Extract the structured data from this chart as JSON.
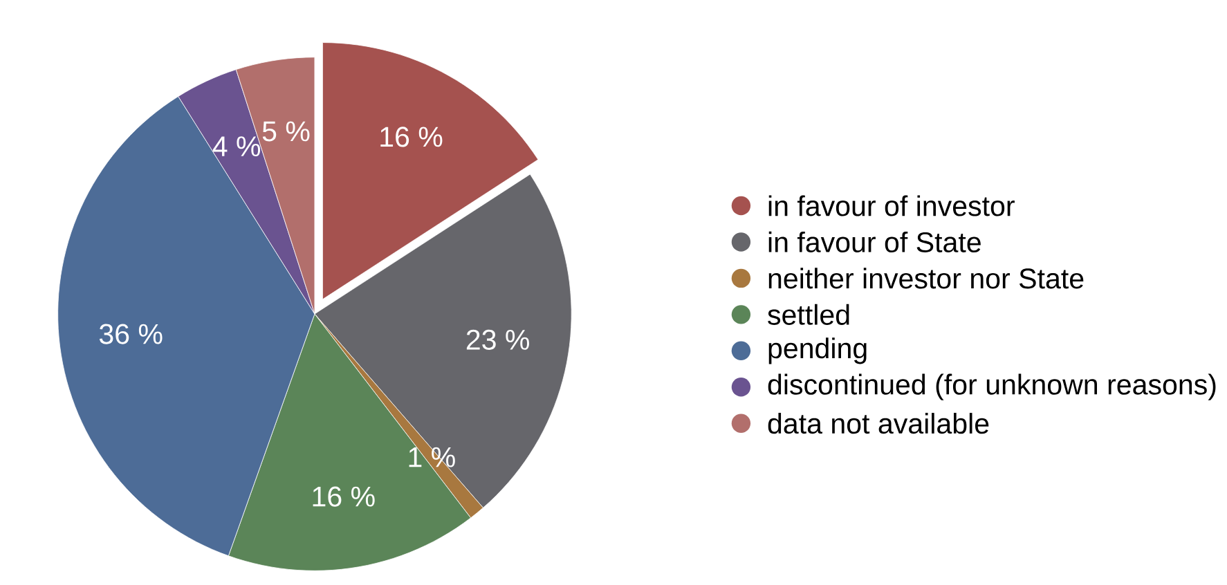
{
  "chart_data": {
    "type": "pie",
    "categories": [
      "in favour of investor",
      "in favour of State",
      "neither investor nor State",
      "settled",
      "pending",
      "discontinued (for unknown reasons)",
      "data not available"
    ],
    "values": [
      16,
      23,
      1,
      16,
      36,
      4,
      5
    ],
    "value_labels": [
      "16 %",
      "23 %",
      "1 %",
      "16 %",
      "36 %",
      "4 %",
      "5 %"
    ],
    "colors": [
      "#a5524f",
      "#66666b",
      "#a8783f",
      "#5b8558",
      "#4d6c97",
      "#6a5390",
      "#b26f6c"
    ],
    "legend": "right"
  }
}
